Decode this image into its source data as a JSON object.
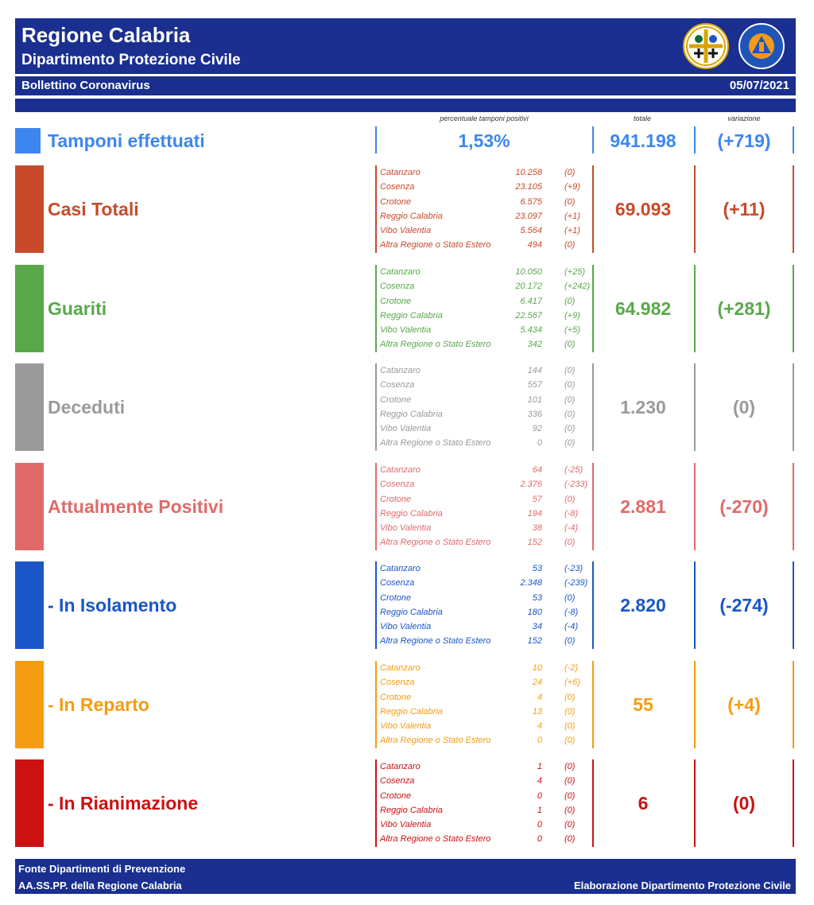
{
  "header": {
    "title": "Regione Calabria",
    "subtitle": "Dipartimento Protezione Civile",
    "bulletin": "Bollettino Coronavirus",
    "date": "05/07/2021"
  },
  "columns": {
    "percent_header": "percentuale tamponi positivi",
    "total_header": "totale",
    "change_header": "variazione"
  },
  "tamponi": {
    "label": "Tamponi effettuati",
    "percent": "1,53%",
    "total": "941.198",
    "change": "(+719)",
    "color": "#3d86f0"
  },
  "sections": [
    {
      "label": "Casi Totali",
      "total": "69.093",
      "change": "(+11)",
      "color": "#c84a2a",
      "rows": [
        {
          "name": "Catanzaro",
          "value": "10.258",
          "change": "(0)"
        },
        {
          "name": "Cosenza",
          "value": "23.105",
          "change": "(+9)"
        },
        {
          "name": "Crotone",
          "value": "6.575",
          "change": "(0)"
        },
        {
          "name": "Reggio Calabria",
          "value": "23.097",
          "change": "(+1)"
        },
        {
          "name": "Vibo Valentia",
          "value": "5.564",
          "change": "(+1)"
        },
        {
          "name": "Altra Regione o Stato Estero",
          "value": "494",
          "change": "(0)"
        }
      ]
    },
    {
      "label": "Guariti",
      "total": "64.982",
      "change": "(+281)",
      "color": "#58a84a",
      "rows": [
        {
          "name": "Catanzaro",
          "value": "10.050",
          "change": "(+25)"
        },
        {
          "name": "Cosenza",
          "value": "20.172",
          "change": "(+242)"
        },
        {
          "name": "Crotone",
          "value": "6.417",
          "change": "(0)"
        },
        {
          "name": "Reggio Calabria",
          "value": "22.567",
          "change": "(+9)"
        },
        {
          "name": "Vibo Valentia",
          "value": "5.434",
          "change": "(+5)"
        },
        {
          "name": "Altra Regione o Stato Estero",
          "value": "342",
          "change": "(0)"
        }
      ]
    },
    {
      "label": "Deceduti",
      "total": "1.230",
      "change": "(0)",
      "color": "#9a9a9a",
      "rows": [
        {
          "name": "Catanzaro",
          "value": "144",
          "change": "(0)"
        },
        {
          "name": "Cosenza",
          "value": "557",
          "change": "(0)"
        },
        {
          "name": "Crotone",
          "value": "101",
          "change": "(0)"
        },
        {
          "name": "Reggio Calabria",
          "value": "336",
          "change": "(0)"
        },
        {
          "name": "Vibo Valentia",
          "value": "92",
          "change": "(0)"
        },
        {
          "name": "Altra Regione o Stato Estero",
          "value": "0",
          "change": "(0)"
        }
      ]
    },
    {
      "label": "Attualmente Positivi",
      "total": "2.881",
      "change": "(-270)",
      "color": "#e06a6a",
      "rows": [
        {
          "name": "Catanzaro",
          "value": "64",
          "change": "(-25)"
        },
        {
          "name": "Cosenza",
          "value": "2.376",
          "change": "(-233)"
        },
        {
          "name": "Crotone",
          "value": "57",
          "change": "(0)"
        },
        {
          "name": "Reggio Calabria",
          "value": "194",
          "change": "(-8)"
        },
        {
          "name": "Vibo Valentia",
          "value": "38",
          "change": "(-4)"
        },
        {
          "name": "Altra Regione o Stato Estero",
          "value": "152",
          "change": "(0)"
        }
      ]
    },
    {
      "label": "- In Isolamento",
      "total": "2.820",
      "change": "(-274)",
      "color": "#1a56c8",
      "rows": [
        {
          "name": "Catanzaro",
          "value": "53",
          "change": "(-23)"
        },
        {
          "name": "Cosenza",
          "value": "2.348",
          "change": "(-239)"
        },
        {
          "name": "Crotone",
          "value": "53",
          "change": "(0)"
        },
        {
          "name": "Reggio Calabria",
          "value": "180",
          "change": "(-8)"
        },
        {
          "name": "Vibo Valentia",
          "value": "34",
          "change": "(-4)"
        },
        {
          "name": "Altra Regione o Stato Estero",
          "value": "152",
          "change": "(0)"
        }
      ]
    },
    {
      "label": "- In Reparto",
      "total": "55",
      "change": "(+4)",
      "color": "#f59c12",
      "rows": [
        {
          "name": "Catanzaro",
          "value": "10",
          "change": "(-2)"
        },
        {
          "name": "Cosenza",
          "value": "24",
          "change": "(+6)"
        },
        {
          "name": "Crotone",
          "value": "4",
          "change": "(0)"
        },
        {
          "name": "Reggio Calabria",
          "value": "13",
          "change": "(0)"
        },
        {
          "name": "Vibo Valentia",
          "value": "4",
          "change": "(0)"
        },
        {
          "name": "Altra Regione o Stato Estero",
          "value": "0",
          "change": "(0)"
        }
      ]
    },
    {
      "label": "- In Rianimazione",
      "total": "6",
      "change": "(0)",
      "color": "#cc1111",
      "rows": [
        {
          "name": "Catanzaro",
          "value": "1",
          "change": "(0)"
        },
        {
          "name": "Cosenza",
          "value": "4",
          "change": "(0)"
        },
        {
          "name": "Crotone",
          "value": "0",
          "change": "(0)"
        },
        {
          "name": "Reggio Calabria",
          "value": "1",
          "change": "(0)"
        },
        {
          "name": "Vibo Valentia",
          "value": "0",
          "change": "(0)"
        },
        {
          "name": "Altra Regione o Stato Estero",
          "value": "0",
          "change": "(0)"
        }
      ]
    }
  ],
  "footer": {
    "source_line1": "Fonte Dipartimenti di Prevenzione",
    "source_line2": "AA.SS.PP.  della Regione Calabria",
    "credit": "Elaborazione Dipartimento Protezione Civile"
  },
  "logos": {
    "region_logo": "calabria-coat-of-arms-icon",
    "civil_protection_logo": "protezione-civile-emblem-icon"
  }
}
